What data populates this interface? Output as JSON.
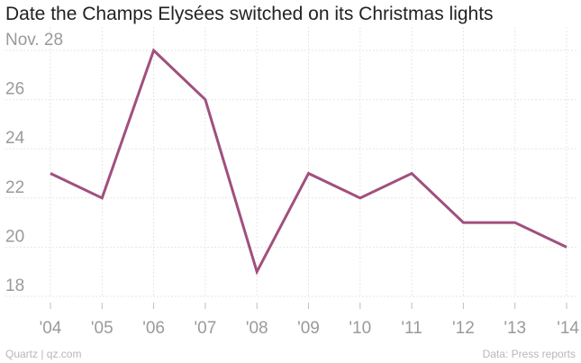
{
  "title": "Date the Champs Elysées switched on its Christmas lights",
  "footer": {
    "left": "Quartz | qz.com",
    "right": "Data: Press reports"
  },
  "colors": {
    "line": "#a0507e",
    "title": "#222222",
    "tick_label": "#9a9a9a",
    "grid": "#e6e6e6"
  },
  "chart_data": {
    "type": "line",
    "title": "Date the Champs Elysées switched on its Christmas lights",
    "xlabel": "",
    "ylabel": "",
    "categories": [
      "'04",
      "'05",
      "'06",
      "'07",
      "'08",
      "'09",
      "'10",
      "'11",
      "'12",
      "'13",
      "'14"
    ],
    "series": [
      {
        "values": [
          23,
          22,
          28,
          26,
          19,
          23,
          22,
          23,
          21,
          21,
          20
        ]
      }
    ],
    "yticks": [
      28,
      26,
      24,
      22,
      20,
      18
    ],
    "ytick_labels": [
      "Nov. 28",
      "26",
      "24",
      "22",
      "20",
      "18"
    ],
    "ylim": [
      18,
      28
    ],
    "grid": true,
    "legend": "none"
  }
}
